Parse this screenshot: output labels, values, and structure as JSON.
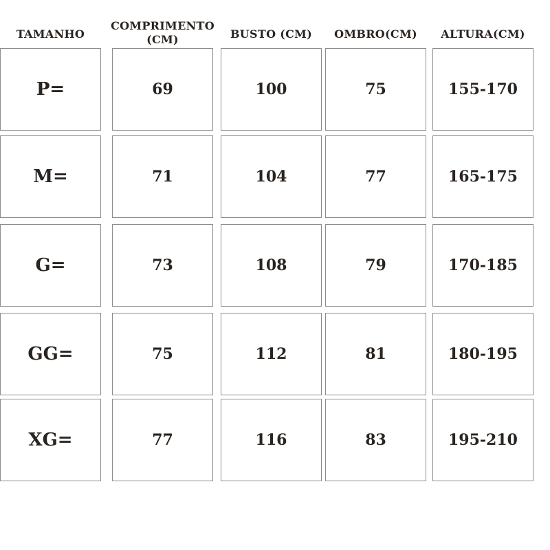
{
  "headers": [
    "TAMANHO",
    "COMPRIMENTO\n(CM)",
    "BUSTO (CM)",
    "OMBRO(CM)",
    "ALTURA(CM)"
  ],
  "rows": [
    [
      "P=",
      "69",
      "100",
      "75",
      "155-170"
    ],
    [
      "M=",
      "71",
      "104",
      "77",
      "165-175"
    ],
    [
      "G=",
      "73",
      "108",
      "79",
      "170-185"
    ],
    [
      "GG=",
      "75",
      "112",
      "81",
      "180-195"
    ],
    [
      "XG=",
      "77",
      "116",
      "83",
      "195-210"
    ]
  ]
}
